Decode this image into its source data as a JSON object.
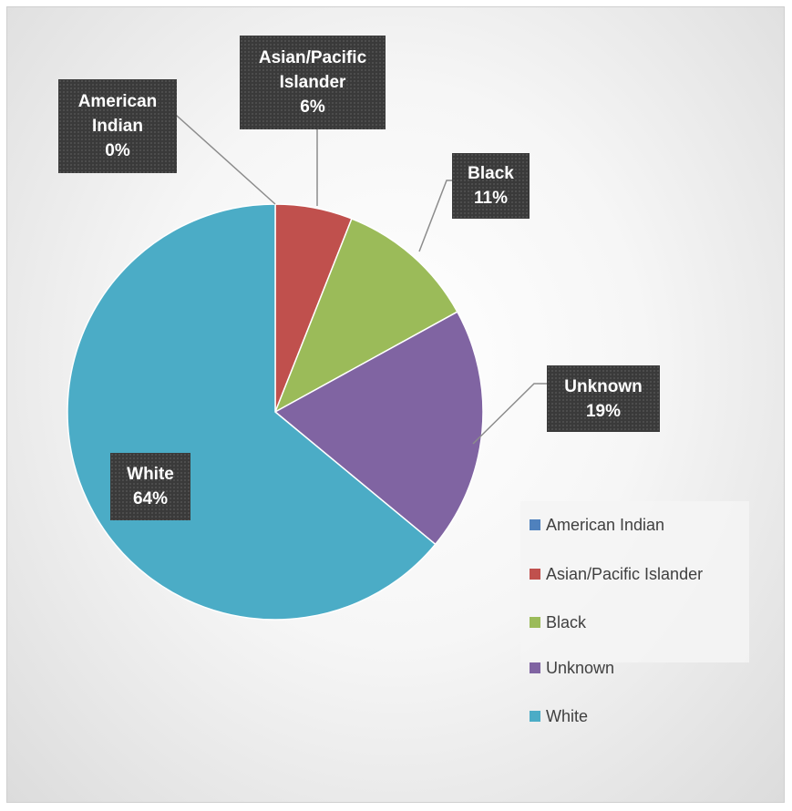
{
  "chart_data": {
    "type": "pie",
    "title": "",
    "slices": [
      {
        "label": "American Indian",
        "value": 0,
        "percent_label": "0%",
        "color": "#4F81BD"
      },
      {
        "label": "Asian/Pacific Islander",
        "value": 6,
        "percent_label": "6%",
        "color": "#C0504D"
      },
      {
        "label": "Black",
        "value": 11,
        "percent_label": "11%",
        "color": "#9BBB59"
      },
      {
        "label": "Unknown",
        "value": 19,
        "percent_label": "19%",
        "color": "#8064A2"
      },
      {
        "label": "White",
        "value": 64,
        "percent_label": "64%",
        "color": "#4BACC6"
      }
    ],
    "legend_position": "right",
    "data_labels": "outside-callouts"
  },
  "callouts": {
    "american_indian": {
      "name_lines": [
        "American",
        "Indian"
      ],
      "pct": "0%"
    },
    "asian_pacific": {
      "name_lines": [
        "Asian/Pacific",
        "Islander"
      ],
      "pct": "6%"
    },
    "black": {
      "name_lines": [
        "Black"
      ],
      "pct": "11%"
    },
    "unknown": {
      "name_lines": [
        "Unknown"
      ],
      "pct": "19%"
    },
    "white": {
      "name_lines": [
        "White"
      ],
      "pct": "64%"
    }
  },
  "legend": [
    {
      "label": "American Indian",
      "color": "#4F81BD"
    },
    {
      "label": "Asian/Pacific Islander",
      "color": "#C0504D"
    },
    {
      "label": "Black",
      "color": "#9BBB59"
    },
    {
      "label": "Unknown",
      "color": "#8064A2"
    },
    {
      "label": "White",
      "color": "#4BACC6"
    }
  ]
}
